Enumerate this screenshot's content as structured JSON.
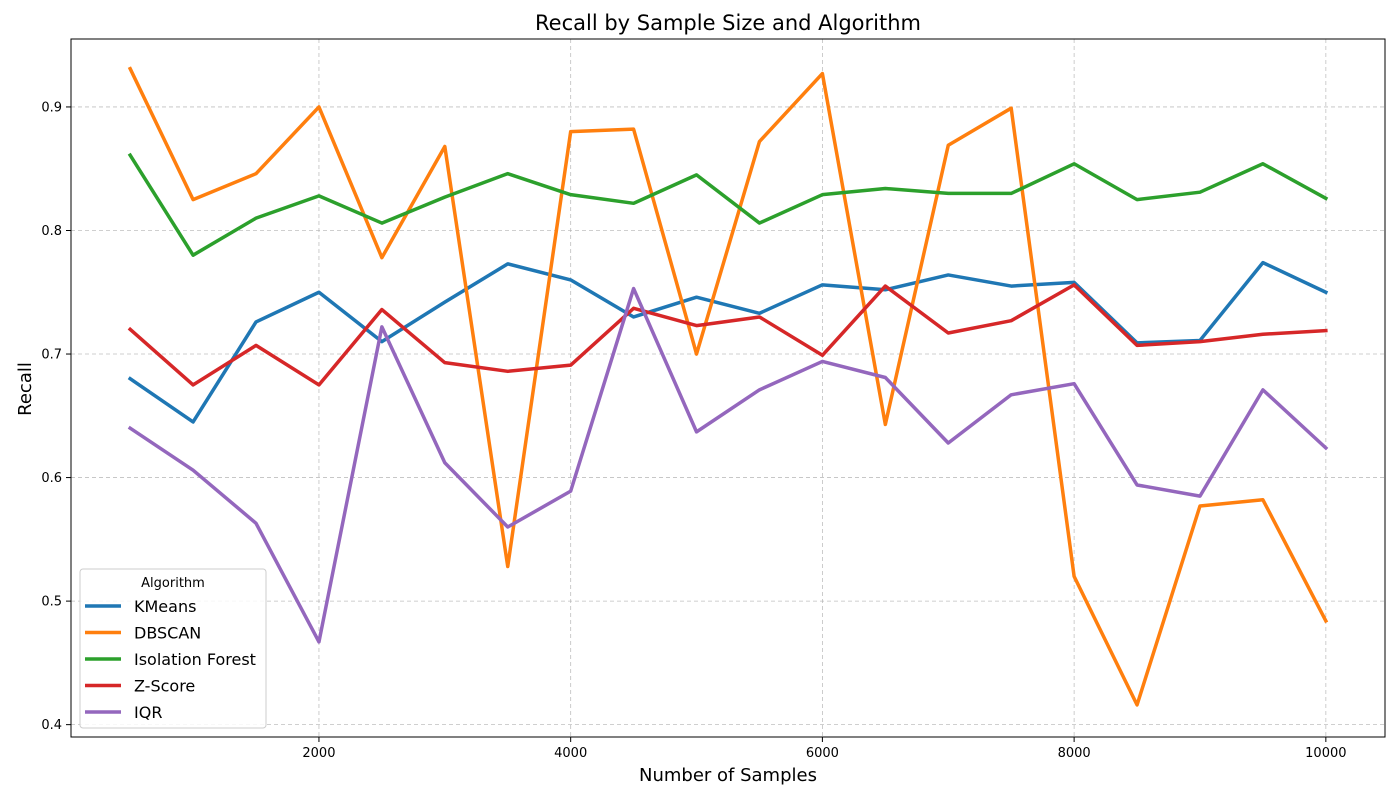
{
  "chart_data": {
    "type": "line",
    "title": "Recall by Sample Size and Algorithm",
    "xlabel": "Number of Samples",
    "ylabel": "Recall",
    "xlim": [
      30,
      10470
    ],
    "ylim": [
      0.39,
      0.955
    ],
    "xticks": [
      2000,
      4000,
      6000,
      8000,
      10000
    ],
    "yticks": [
      0.4,
      0.5,
      0.6,
      0.7,
      0.8,
      0.9
    ],
    "grid": true,
    "legend": {
      "title": "Algorithm",
      "placement": "lower-left"
    },
    "x": [
      500,
      1000,
      1500,
      2000,
      2500,
      3000,
      3500,
      4000,
      4500,
      5000,
      5500,
      6000,
      6500,
      7000,
      7500,
      8000,
      8500,
      9000,
      9500,
      10000
    ],
    "series": [
      {
        "name": "KMeans",
        "color": "#1f77b4",
        "values": [
          0.68,
          0.645,
          0.726,
          0.75,
          0.71,
          0.742,
          0.773,
          0.76,
          0.73,
          0.746,
          0.733,
          0.756,
          0.752,
          0.764,
          0.755,
          0.758,
          0.709,
          0.711,
          0.774,
          0.75
        ]
      },
      {
        "name": "DBSCAN",
        "color": "#ff7f0e",
        "values": [
          0.931,
          0.825,
          0.846,
          0.9,
          0.778,
          0.868,
          0.528,
          0.88,
          0.882,
          0.7,
          0.872,
          0.927,
          0.643,
          0.869,
          0.899,
          0.52,
          0.416,
          0.577,
          0.582,
          0.484
        ]
      },
      {
        "name": "Isolation Forest",
        "color": "#2ca02c",
        "values": [
          0.861,
          0.78,
          0.81,
          0.828,
          0.806,
          0.827,
          0.846,
          0.829,
          0.822,
          0.845,
          0.806,
          0.829,
          0.834,
          0.83,
          0.83,
          0.854,
          0.825,
          0.831,
          0.854,
          0.826
        ]
      },
      {
        "name": "Z-Score",
        "color": "#d62728",
        "values": [
          0.72,
          0.675,
          0.707,
          0.675,
          0.736,
          0.693,
          0.686,
          0.691,
          0.737,
          0.723,
          0.73,
          0.699,
          0.755,
          0.717,
          0.727,
          0.756,
          0.707,
          0.71,
          0.716,
          0.719
        ]
      },
      {
        "name": "IQR",
        "color": "#9467bd",
        "values": [
          0.64,
          0.606,
          0.563,
          0.467,
          0.722,
          0.612,
          0.56,
          0.589,
          0.753,
          0.637,
          0.671,
          0.694,
          0.681,
          0.628,
          0.667,
          0.676,
          0.594,
          0.585,
          0.671,
          0.624
        ]
      }
    ]
  }
}
